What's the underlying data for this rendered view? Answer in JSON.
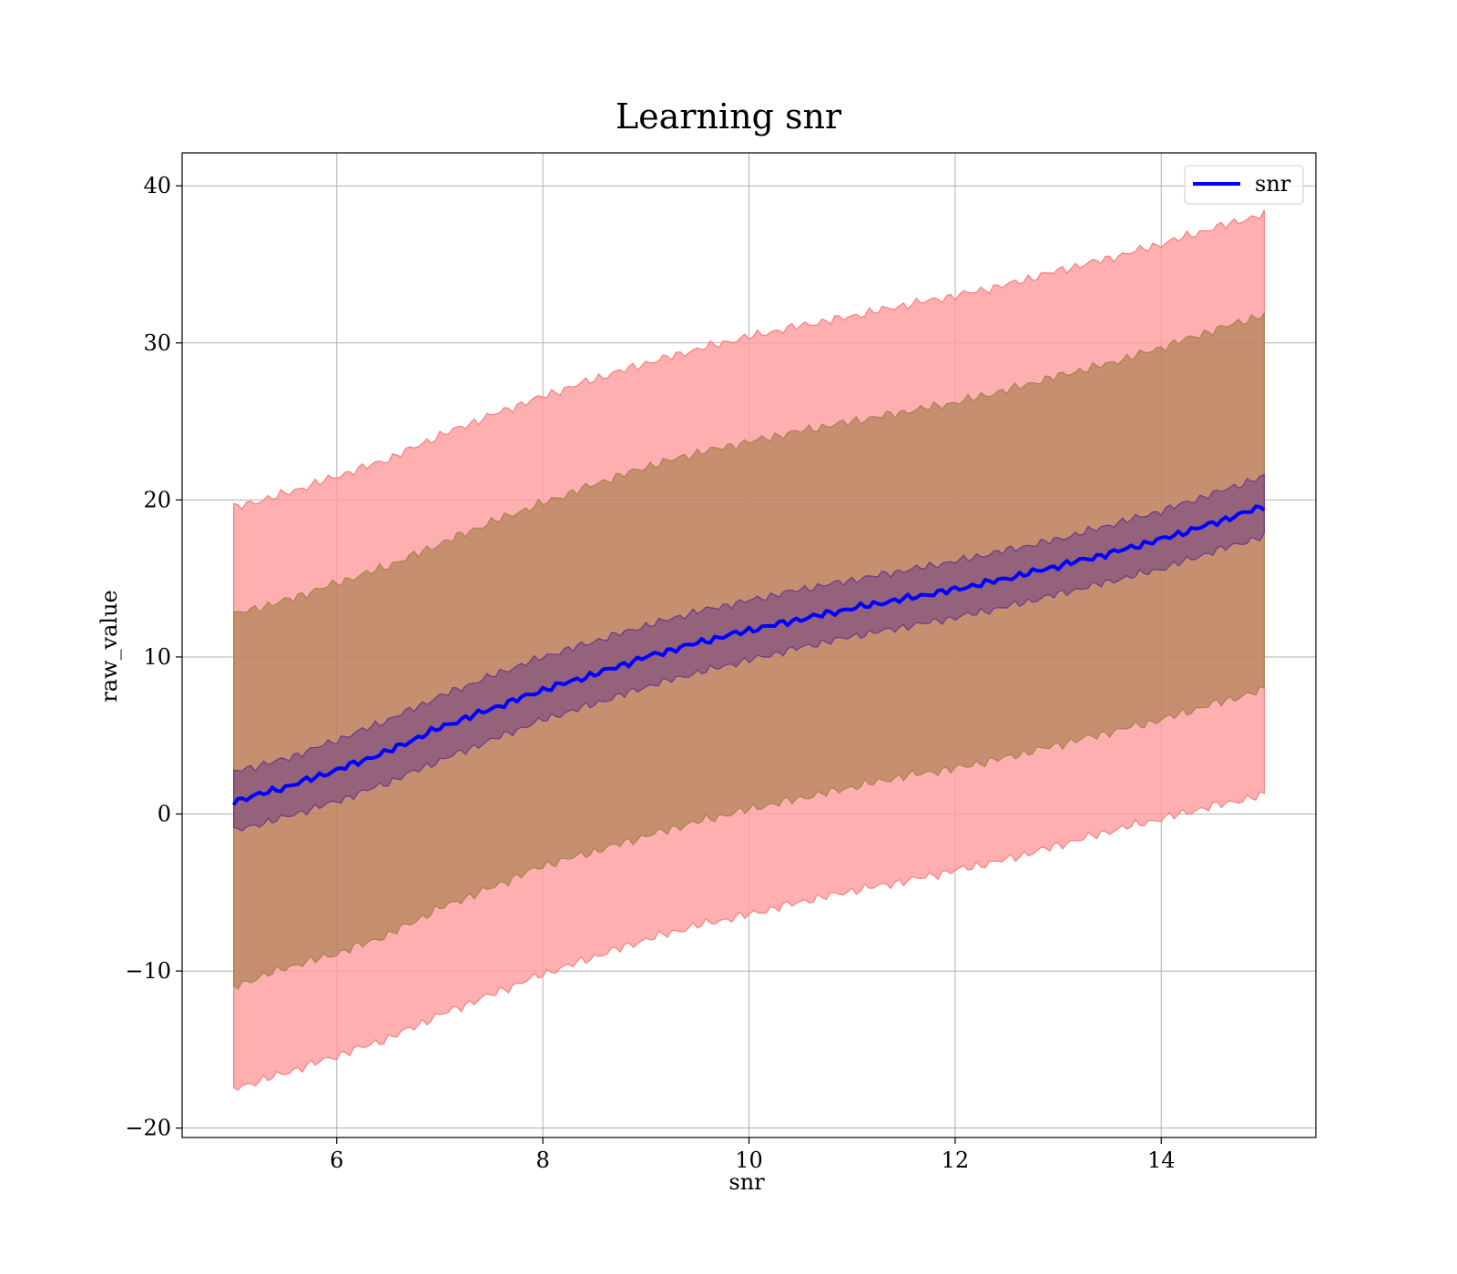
{
  "chart_data": {
    "type": "area",
    "title": "Learning snr",
    "xlabel": "snr",
    "ylabel": "raw_value",
    "xlim": [
      4.5,
      15.5
    ],
    "ylim": [
      -20.6,
      42.1
    ],
    "xticks": [
      6,
      8,
      10,
      12,
      14
    ],
    "yticks": [
      -20,
      -10,
      0,
      10,
      20,
      30,
      40
    ],
    "xtick_labels": [
      "6",
      "8",
      "10",
      "12",
      "14"
    ],
    "ytick_labels": [
      "−20",
      "−10",
      "0",
      "10",
      "20",
      "30",
      "40"
    ],
    "grid": true,
    "legend": {
      "position": "top-right",
      "entries": [
        "snr"
      ]
    },
    "colors": {
      "line": "#0000ff",
      "band_outer": "#ff9d9d",
      "band_outer_edge": "#f26d6d",
      "band_middle": "#9e7a46",
      "band_inner": "#5b2c8c",
      "grid": "#b0b0b0"
    },
    "series": [
      {
        "name": "snr",
        "x": [
          5.0,
          5.5,
          6.0,
          6.5,
          7.0,
          7.5,
          8.0,
          8.5,
          9.0,
          9.5,
          10.0,
          10.5,
          11.0,
          11.5,
          12.0,
          12.5,
          13.0,
          13.5,
          14.0,
          14.5,
          15.0
        ],
        "mean": [
          0.8,
          1.7,
          2.8,
          4.0,
          5.5,
          6.7,
          7.9,
          8.9,
          10.0,
          10.9,
          11.7,
          12.4,
          13.1,
          13.7,
          14.3,
          15.0,
          15.8,
          16.6,
          17.5,
          18.5,
          19.6
        ],
        "band_inner": {
          "lower": [
            -1.1,
            -0.2,
            0.8,
            2.0,
            3.4,
            4.7,
            6.0,
            7.0,
            8.1,
            9.0,
            9.8,
            10.6,
            11.3,
            11.9,
            12.5,
            13.2,
            14.0,
            14.8,
            15.6,
            16.7,
            17.7
          ],
          "upper": [
            2.7,
            3.5,
            4.7,
            6.0,
            7.5,
            8.8,
            10.0,
            11.0,
            12.0,
            12.9,
            13.6,
            14.3,
            14.9,
            15.5,
            16.1,
            16.8,
            17.5,
            18.4,
            19.3,
            20.4,
            21.5
          ]
        },
        "band_middle": {
          "lower": [
            -11.0,
            -9.8,
            -8.9,
            -7.7,
            -6.0,
            -4.7,
            -3.3,
            -2.4,
            -1.4,
            -0.5,
            0.3,
            1.0,
            1.7,
            2.4,
            2.9,
            3.6,
            4.4,
            5.2,
            6.0,
            7.0,
            7.9
          ],
          "upper": [
            12.7,
            13.6,
            14.7,
            15.8,
            17.2,
            18.6,
            19.8,
            21.0,
            22.1,
            23.0,
            23.7,
            24.4,
            25.0,
            25.6,
            26.2,
            27.0,
            27.9,
            28.7,
            29.7,
            30.8,
            31.8
          ]
        },
        "band_outer": {
          "lower": [
            -17.5,
            -16.5,
            -15.4,
            -14.3,
            -12.8,
            -11.5,
            -10.2,
            -9.1,
            -8.0,
            -7.1,
            -6.4,
            -5.6,
            -4.9,
            -4.3,
            -3.6,
            -2.9,
            -2.0,
            -1.1,
            -0.3,
            0.5,
            1.2
          ],
          "upper": [
            19.5,
            20.4,
            21.5,
            22.6,
            24.1,
            25.4,
            26.6,
            27.7,
            28.7,
            29.6,
            30.4,
            31.1,
            31.7,
            32.4,
            33.0,
            33.7,
            34.6,
            35.4,
            36.3,
            37.3,
            38.2
          ]
        }
      }
    ]
  }
}
